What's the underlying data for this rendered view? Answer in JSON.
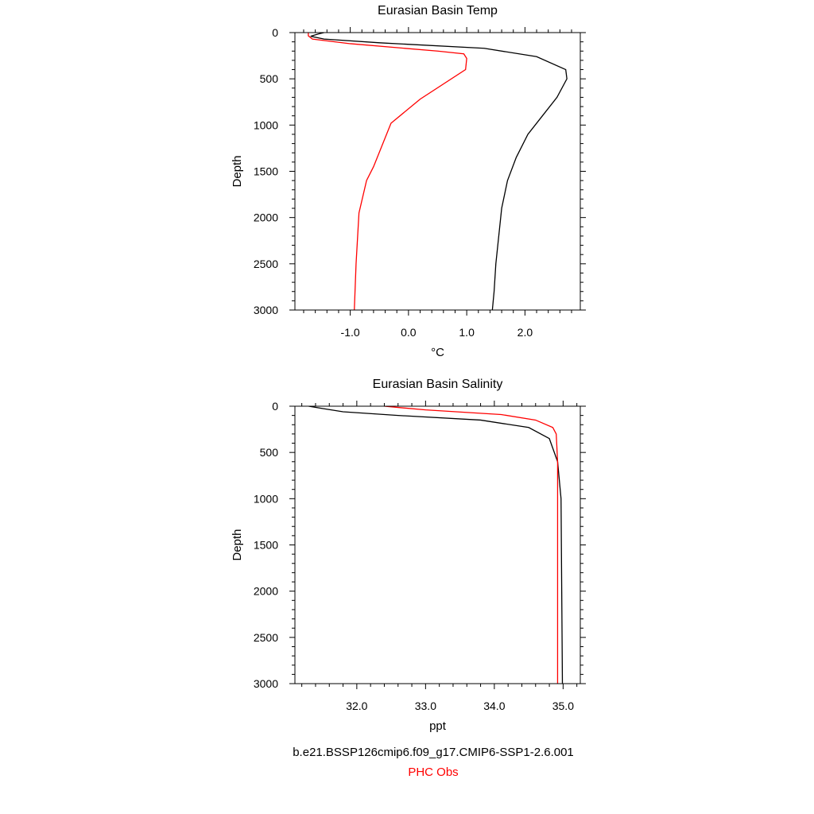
{
  "chart_data": [
    {
      "type": "line",
      "title": "Eurasian Basin Temp",
      "xlabel": "°C",
      "ylabel": "Depth",
      "xlim": [
        -1.95,
        2.95
      ],
      "ylim": [
        3000,
        0
      ],
      "xticks": [
        -1.0,
        0.0,
        1.0,
        2.0
      ],
      "xtick_labels": [
        "-1.0",
        "0.0",
        "1.0",
        "2.0"
      ],
      "yticks": [
        0,
        500,
        1000,
        1500,
        2000,
        2500,
        3000
      ],
      "ytick_labels": [
        "0",
        "500",
        "1000",
        "1500",
        "2000",
        "2500",
        "3000"
      ],
      "grid": false,
      "series": [
        {
          "color": "#000000",
          "points": [
            [
              -1.45,
              0
            ],
            [
              -1.55,
              15
            ],
            [
              -1.68,
              40
            ],
            [
              -1.45,
              70
            ],
            [
              -0.5,
              110
            ],
            [
              1.3,
              170
            ],
            [
              2.2,
              260
            ],
            [
              2.7,
              400
            ],
            [
              2.72,
              500
            ],
            [
              2.55,
              700
            ],
            [
              2.3,
              900
            ],
            [
              2.05,
              1100
            ],
            [
              1.85,
              1350
            ],
            [
              1.7,
              1600
            ],
            [
              1.6,
              1900
            ],
            [
              1.55,
              2200
            ],
            [
              1.5,
              2500
            ],
            [
              1.47,
              2800
            ],
            [
              1.44,
              3000
            ]
          ]
        },
        {
          "color": "#ff0000",
          "points": [
            [
              -1.72,
              0
            ],
            [
              -1.72,
              35
            ],
            [
              -1.65,
              70
            ],
            [
              -1.0,
              120
            ],
            [
              0.5,
              200
            ],
            [
              0.95,
              230
            ],
            [
              1.0,
              280
            ],
            [
              0.98,
              400
            ],
            [
              0.2,
              720
            ],
            [
              -0.3,
              980
            ],
            [
              -0.6,
              1450
            ],
            [
              -0.72,
              1600
            ],
            [
              -0.85,
              1950
            ],
            [
              -0.9,
              2500
            ],
            [
              -0.93,
              3000
            ]
          ]
        }
      ]
    },
    {
      "type": "line",
      "title": "Eurasian Basin Salinity",
      "xlabel": "ppt",
      "ylabel": "Depth",
      "xlim": [
        31.1,
        35.25
      ],
      "ylim": [
        3000,
        0
      ],
      "xticks": [
        32.0,
        33.0,
        34.0,
        35.0
      ],
      "xtick_labels": [
        "32.0",
        "33.0",
        "34.0",
        "35.0"
      ],
      "yticks": [
        0,
        500,
        1000,
        1500,
        2000,
        2500,
        3000
      ],
      "ytick_labels": [
        "0",
        "500",
        "1000",
        "1500",
        "2000",
        "2500",
        "3000"
      ],
      "grid": false,
      "series": [
        {
          "color": "#000000",
          "points": [
            [
              31.3,
              0
            ],
            [
              31.5,
              25
            ],
            [
              31.8,
              60
            ],
            [
              32.6,
              100
            ],
            [
              33.8,
              150
            ],
            [
              34.5,
              230
            ],
            [
              34.8,
              350
            ],
            [
              34.92,
              600
            ],
            [
              34.97,
              1000
            ],
            [
              34.98,
              2000
            ],
            [
              34.99,
              3000
            ]
          ]
        },
        {
          "color": "#ff0000",
          "points": [
            [
              32.4,
              0
            ],
            [
              33.0,
              40
            ],
            [
              34.1,
              90
            ],
            [
              34.6,
              150
            ],
            [
              34.85,
              230
            ],
            [
              34.9,
              300
            ],
            [
              34.92,
              600
            ],
            [
              34.92,
              1000
            ],
            [
              34.92,
              2000
            ],
            [
              34.92,
              3000
            ]
          ]
        }
      ]
    }
  ],
  "legend": {
    "model_label": "b.e21.BSSP126cmip6.f09_g17.CMIP6-SSP1-2.6.001",
    "obs_label": "PHC Obs",
    "model_color": "#000000",
    "obs_color": "#ff0000"
  }
}
